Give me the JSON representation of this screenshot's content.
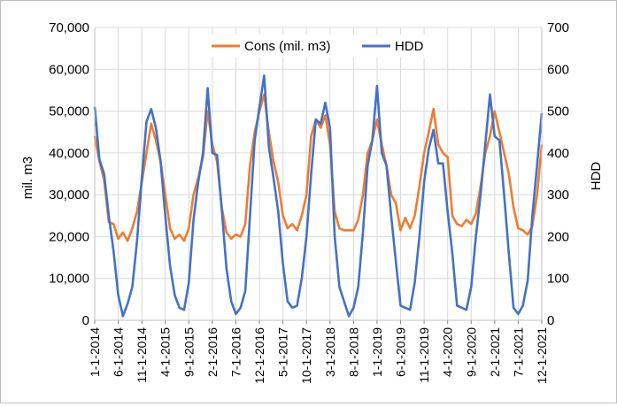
{
  "chart_data": {
    "type": "line",
    "x_tick_labels": [
      "1-1-2014",
      "6-1-2014",
      "11-1-2014",
      "4-1-2015",
      "9-1-2015",
      "2-1-2016",
      "7-1-2016",
      "12-1-2016",
      "5-1-2017",
      "10-1-2017",
      "3-1-2018",
      "8-1-2018",
      "1-1-2019",
      "6-1-2019",
      "11-1-2019",
      "4-1-2020",
      "9-1-2020",
      "2-1-2021",
      "7-1-2021",
      "12-1-2021"
    ],
    "x_start": "1-1-2014",
    "x_end": "12-1-2021",
    "xlabel": "",
    "ylabel": "mil. m3",
    "y2label": "HDD",
    "ylim": [
      0,
      70000
    ],
    "y2lim": [
      0,
      700
    ],
    "y_ticks": [
      "0",
      "10,000",
      "20,000",
      "30,000",
      "40,000",
      "50,000",
      "60,000",
      "70,000"
    ],
    "y2_ticks": [
      "0",
      "100",
      "200",
      "300",
      "400",
      "500",
      "600",
      "700"
    ],
    "grid": true,
    "legend_position": "top",
    "series": [
      {
        "name": "Cons (mil. m3)",
        "axis": "left",
        "color": "#ED7D31",
        "values": [
          44000,
          38000,
          33500,
          23500,
          23000,
          19500,
          21000,
          19000,
          22000,
          26000,
          33000,
          40000,
          47000,
          43000,
          38000,
          30000,
          22000,
          19500,
          20500,
          19000,
          22000,
          30000,
          34000,
          39000,
          50000,
          42000,
          38000,
          27000,
          21000,
          19500,
          20500,
          20000,
          23000,
          37000,
          45000,
          50000,
          54000,
          45000,
          38000,
          33000,
          25000,
          22000,
          23000,
          21500,
          25000,
          30000,
          44000,
          48000,
          46000,
          49000,
          42000,
          26000,
          22000,
          21500,
          21500,
          21500,
          24000,
          30000,
          40000,
          43000,
          48000,
          42000,
          37000,
          30000,
          28000,
          21500,
          24500,
          22000,
          25000,
          32000,
          40000,
          45000,
          50500,
          42000,
          40000,
          39000,
          25000,
          23000,
          22500,
          24000,
          23000,
          25500,
          32000,
          40000,
          44000,
          50000,
          45000,
          40000,
          35000,
          27000,
          22000,
          21500,
          20500,
          22500,
          30000,
          42000
        ]
      },
      {
        "name": "HDD",
        "axis": "right",
        "color": "#4472C4",
        "values": [
          510,
          385,
          350,
          250,
          165,
          60,
          10,
          40,
          80,
          190,
          340,
          475,
          505,
          460,
          380,
          250,
          130,
          60,
          30,
          25,
          90,
          240,
          330,
          400,
          555,
          400,
          395,
          265,
          125,
          45,
          15,
          30,
          70,
          250,
          430,
          510,
          585,
          415,
          340,
          260,
          135,
          45,
          30,
          35,
          100,
          200,
          350,
          480,
          470,
          520,
          460,
          200,
          80,
          45,
          10,
          30,
          80,
          210,
          370,
          430,
          560,
          400,
          370,
          250,
          140,
          35,
          30,
          25,
          90,
          200,
          330,
          410,
          455,
          375,
          375,
          260,
          160,
          35,
          30,
          25,
          80,
          200,
          300,
          420,
          540,
          440,
          430,
          300,
          160,
          30,
          15,
          35,
          95,
          250,
          370,
          495
        ]
      }
    ]
  }
}
